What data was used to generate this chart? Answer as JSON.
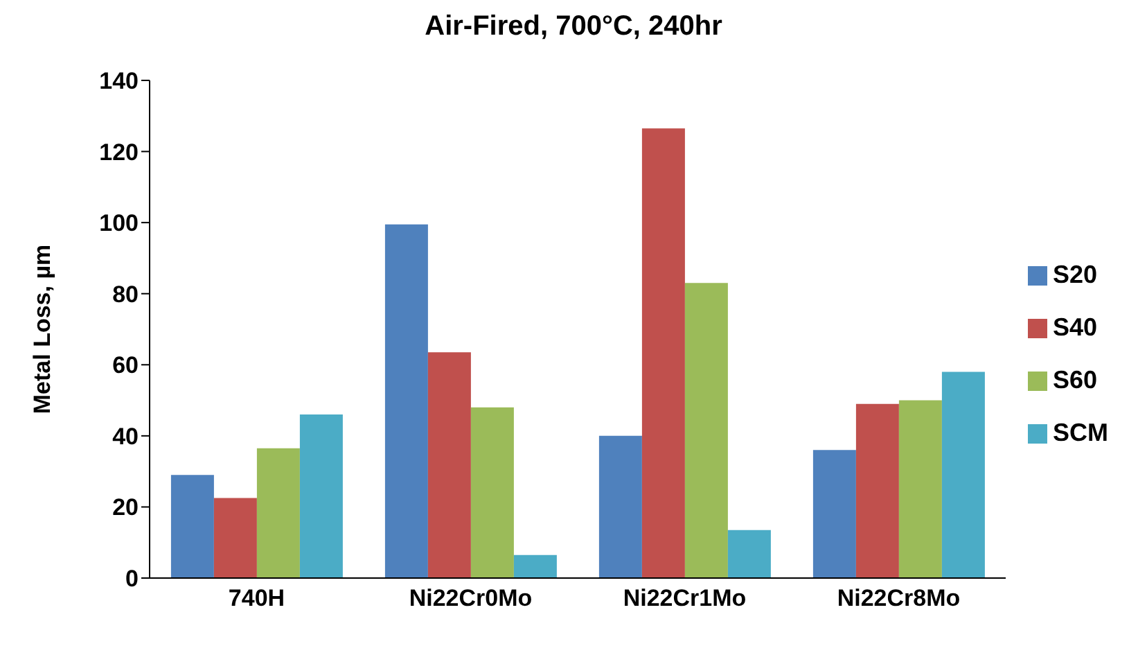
{
  "chart_data": {
    "type": "bar",
    "title": "Air-Fired, 700°C, 240hr",
    "ylabel": "Metal Loss, µm",
    "categories": [
      "740H",
      "Ni22Cr0Mo",
      "Ni22Cr1Mo",
      "Ni22Cr8Mo"
    ],
    "series": [
      {
        "name": "S20",
        "color": "#4f81bd",
        "values": [
          29,
          99.5,
          40,
          36
        ]
      },
      {
        "name": "S40",
        "color": "#c0504d",
        "values": [
          22.5,
          63.5,
          126.5,
          49
        ]
      },
      {
        "name": "S60",
        "color": "#9bbb59",
        "values": [
          36.5,
          48,
          83,
          50
        ]
      },
      {
        "name": "SCM",
        "color": "#4bacc6",
        "values": [
          46,
          6.5,
          13.5,
          58
        ]
      }
    ],
    "ylim": [
      0,
      140
    ],
    "yticks": [
      0,
      20,
      40,
      60,
      80,
      100,
      120,
      140
    ],
    "grid": false,
    "legend": "right"
  }
}
